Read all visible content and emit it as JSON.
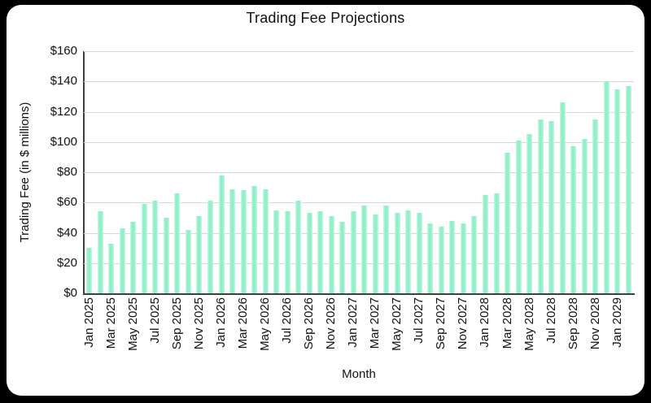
{
  "window": {
    "frame_color": "#000000",
    "card_color": "#ffffff"
  },
  "chart_data": {
    "type": "bar",
    "title": "Trading Fee Projections",
    "xlabel": "Month",
    "ylabel": "Trading Fee (in $ millions)",
    "categories": [
      "Jan 2025",
      "Feb 2025",
      "Mar 2025",
      "Apr 2025",
      "May 2025",
      "Jun 2025",
      "Jul 2025",
      "Aug 2025",
      "Sep 2025",
      "Oct 2025",
      "Nov 2025",
      "Dec 2025",
      "Jan 2026",
      "Feb 2026",
      "Mar 2026",
      "Apr 2026",
      "May 2026",
      "Jun 2026",
      "Jul 2026",
      "Aug 2026",
      "Sep 2026",
      "Oct 2026",
      "Nov 2026",
      "Dec 2026",
      "Jan 2027",
      "Feb 2027",
      "Mar 2027",
      "Apr 2027",
      "May 2027",
      "Jun 2027",
      "Jul 2027",
      "Aug 2027",
      "Sep 2027",
      "Oct 2027",
      "Nov 2027",
      "Dec 2027",
      "Jan 2028",
      "Feb 2028",
      "Mar 2028",
      "Apr 2028",
      "May 2028",
      "Jun 2028",
      "Jul 2028",
      "Aug 2028",
      "Sep 2028",
      "Oct 2028",
      "Nov 2028",
      "Dec 2028",
      "Jan 2029",
      "Feb 2029"
    ],
    "values": [
      30,
      54,
      33,
      43,
      47,
      59,
      61,
      50,
      66,
      42,
      51,
      61,
      78,
      69,
      68,
      71,
      69,
      55,
      54,
      61,
      53,
      54,
      51,
      47,
      54,
      58,
      52,
      58,
      53,
      55,
      53,
      46,
      44,
      48,
      46,
      51,
      65,
      66,
      93,
      101,
      105,
      115,
      114,
      126,
      97,
      102,
      115,
      140,
      135,
      137
    ],
    "ylim": [
      0,
      160
    ],
    "ytick_step": 20,
    "ytick_prefix": "$",
    "xtick_every": 2,
    "grid": "horizontal",
    "legend": "none",
    "bar_color": "#8fefc7",
    "gridline_color": "#d8d8d8",
    "axis_color": "#3f3f3f",
    "text_color": "#111111"
  }
}
